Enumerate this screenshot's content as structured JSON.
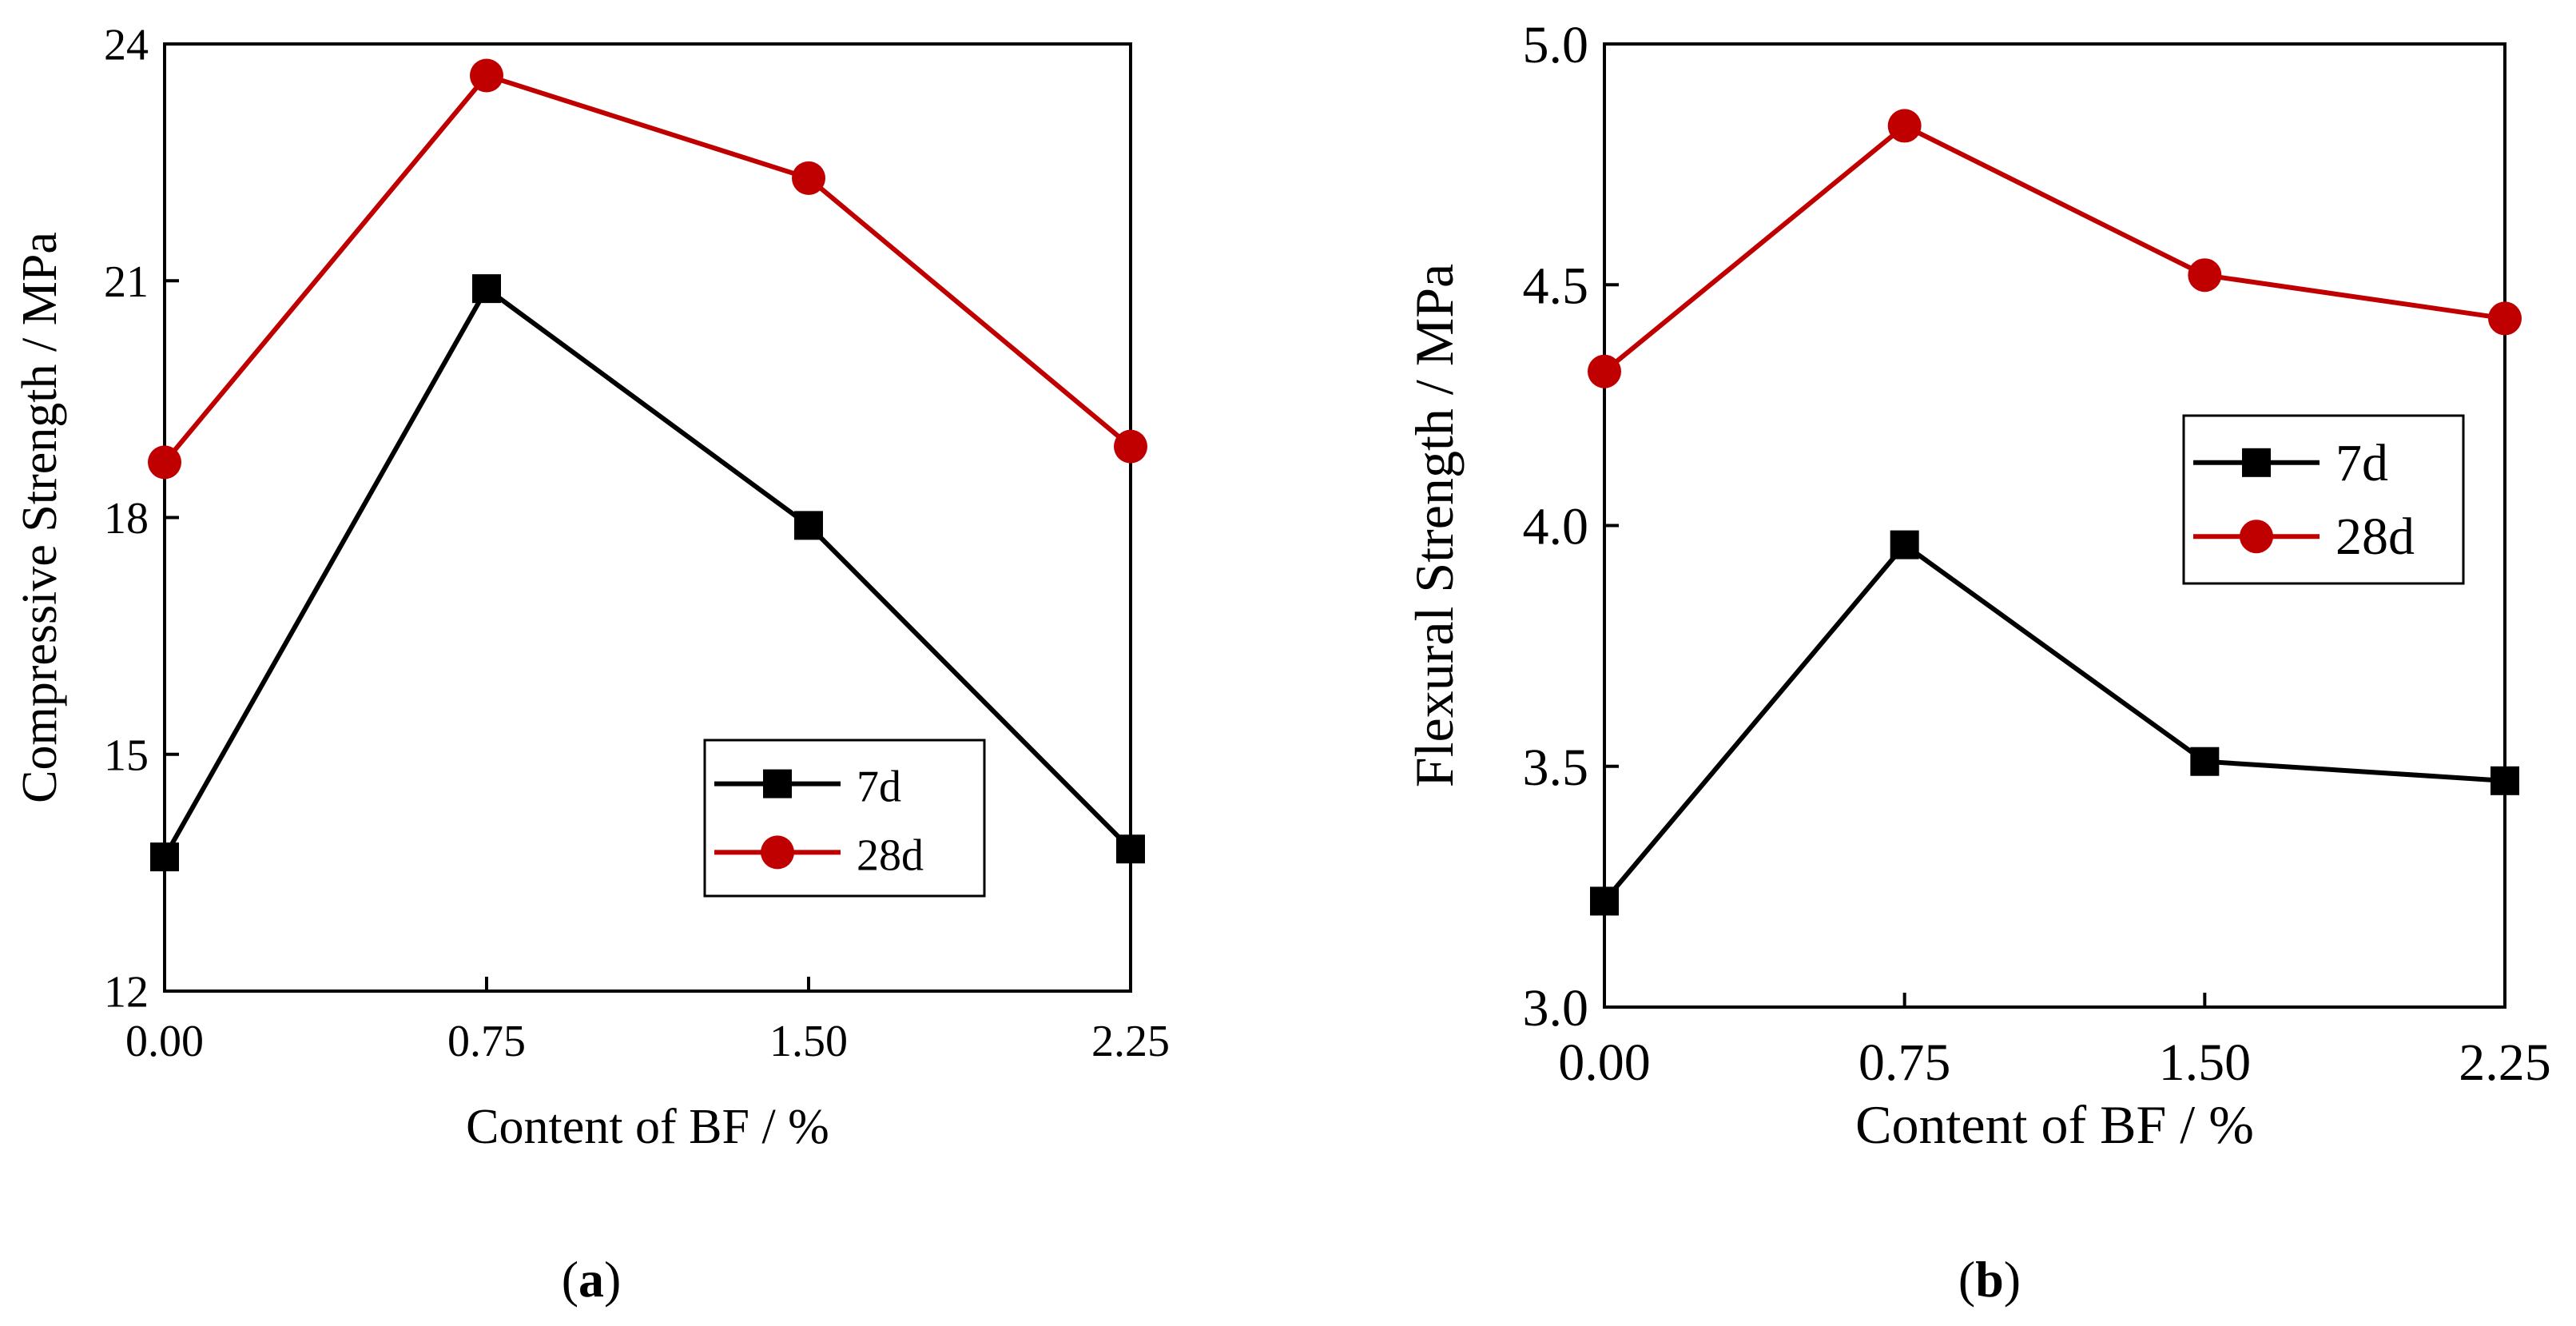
{
  "colors": {
    "series_7d": "#000000",
    "series_28d": "#c00000",
    "axes": "#000000"
  },
  "chart_data": [
    {
      "type": "line",
      "panel_label": "a",
      "x": [
        0.0,
        0.75,
        1.5,
        2.25
      ],
      "xtick_labels": [
        "0.00",
        "0.75",
        "1.50",
        "2.25"
      ],
      "xlabel": "Content of BF / %",
      "ylabel": "Compressive Strength / MPa",
      "xlim": [
        0,
        2.25
      ],
      "ylim": [
        12,
        24
      ],
      "yticks": [
        12,
        15,
        18,
        21,
        24
      ],
      "ytick_labels": [
        "12",
        "15",
        "18",
        "21",
        "24"
      ],
      "grid": false,
      "legend_position": "bottom-right",
      "series": [
        {
          "name": "7d",
          "marker": "square",
          "color": "#000000",
          "values": [
            13.7,
            20.9,
            17.9,
            13.8
          ]
        },
        {
          "name": "28d",
          "marker": "circle",
          "color": "#c00000",
          "values": [
            18.7,
            23.6,
            22.3,
            18.9
          ]
        }
      ]
    },
    {
      "type": "line",
      "panel_label": "b",
      "x": [
        0.0,
        0.75,
        1.5,
        2.25
      ],
      "xtick_labels": [
        "0.00",
        "0.75",
        "1.50",
        "2.25"
      ],
      "xlabel": "Content of BF / %",
      "ylabel": "Flexural Strength / MPa",
      "xlim": [
        0,
        2.25
      ],
      "ylim": [
        3.0,
        5.0
      ],
      "yticks": [
        3.0,
        3.5,
        4.0,
        4.5,
        5.0
      ],
      "ytick_labels": [
        "3.0",
        "3.5",
        "4.0",
        "4.5",
        "5.0"
      ],
      "grid": false,
      "legend_position": "center-right",
      "series": [
        {
          "name": "7d",
          "marker": "square",
          "color": "#000000",
          "values": [
            3.22,
            3.96,
            3.51,
            3.47
          ]
        },
        {
          "name": "28d",
          "marker": "circle",
          "color": "#c00000",
          "values": [
            4.32,
            4.83,
            4.52,
            4.43
          ]
        }
      ]
    }
  ]
}
